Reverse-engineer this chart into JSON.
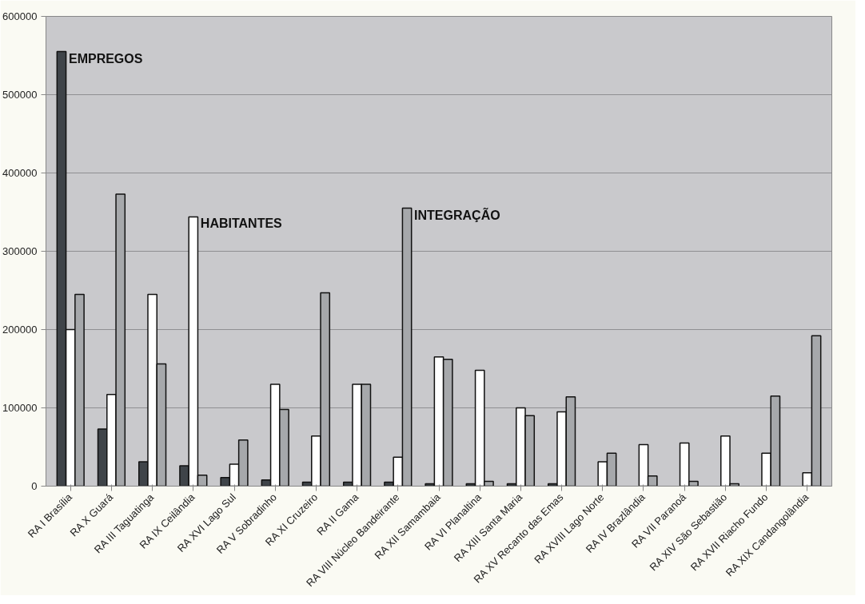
{
  "chart_data": {
    "type": "bar",
    "categories": [
      "RA I Brasília",
      "RA X Guará",
      "RA III Taguatinga",
      "RA IX Ceilândia",
      "RA XVI Lago Sul",
      "RA V Sobradinho",
      "RA XI Cruzeiro",
      "RA II Gama",
      "RA VIII Núcleo Bandeirante",
      "RA XII Samambaia",
      "RA VI Planaltina",
      "RA XIII Santa Maria",
      "RA XV Recanto das Emas",
      "RA XVIII Lago Norte",
      "RA IV Brazlândia",
      "RA VII Paranoá",
      "RA XIV São Sebastião",
      "RA XVII Riacho Fundo",
      "RA XIX Candangolândia"
    ],
    "series": [
      {
        "name": "EMPREGOS",
        "color": "#3f4449",
        "values": [
          555000,
          73000,
          31000,
          26000,
          11000,
          8000,
          5000,
          5000,
          5000,
          3000,
          3000,
          3000,
          3000,
          null,
          null,
          null,
          null,
          null,
          null
        ]
      },
      {
        "name": "HABITANTES",
        "color": "#ffffff",
        "values": [
          200000,
          117000,
          245000,
          344000,
          28000,
          130000,
          64000,
          130000,
          37000,
          165000,
          148000,
          100000,
          95000,
          31000,
          53000,
          55000,
          64000,
          42000,
          17000
        ]
      },
      {
        "name": "INTEGRAÇÃO",
        "color": "#a6a8ab",
        "values": [
          245000,
          373000,
          156000,
          14000,
          59000,
          98000,
          247000,
          130000,
          355000,
          162000,
          6000,
          90000,
          114000,
          42000,
          13000,
          6000,
          3000,
          115000,
          192000
        ]
      }
    ],
    "ylim": [
      0,
      600000
    ],
    "yticks": [
      0,
      100000,
      200000,
      300000,
      400000,
      500000,
      600000
    ],
    "grid": "y"
  }
}
